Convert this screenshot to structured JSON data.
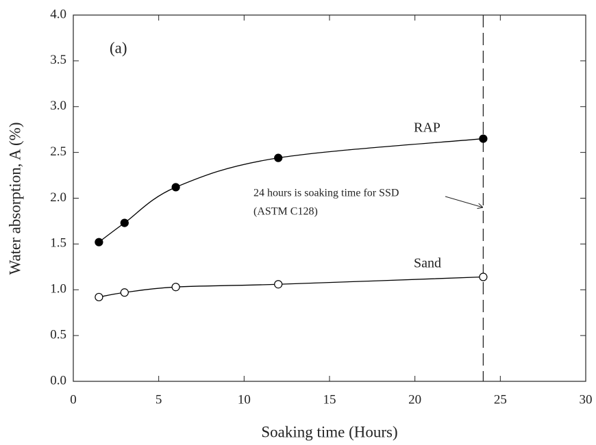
{
  "chart_data": {
    "type": "line",
    "panel_label": "(a)",
    "x_label": "Soaking time (Hours)",
    "y_label": "Water absorption, A (%)",
    "xlim": [
      0,
      30
    ],
    "xticks": [
      0,
      5,
      10,
      15,
      20,
      25,
      30
    ],
    "ylim": [
      0,
      4
    ],
    "yticks": [
      {
        "value": 0,
        "label": "0.0"
      },
      {
        "value": 0.5,
        "label": "0.5"
      },
      {
        "value": 1,
        "label": "1.0"
      },
      {
        "value": 1.5,
        "label": "1.5"
      },
      {
        "value": 2,
        "label": "2.0"
      },
      {
        "value": 2.5,
        "label": "2.5"
      },
      {
        "value": 3,
        "label": "3.0"
      },
      {
        "value": 3.5,
        "label": "3.5"
      },
      {
        "value": 4,
        "label": "4.0"
      }
    ],
    "x": [
      1.5,
      3,
      6,
      12,
      24
    ],
    "series": [
      {
        "name": "RAP",
        "color": "#000000",
        "marker": "filled",
        "values": [
          1.52,
          1.73,
          2.12,
          2.44,
          2.65
        ]
      },
      {
        "name": "Sand",
        "color": "#000000",
        "marker": "open",
        "values": [
          0.92,
          0.97,
          1.03,
          1.06,
          1.14
        ]
      }
    ],
    "vline": 24,
    "annotation": [
      "24 hours is soaking time for SSD",
      "(ASTM C128)"
    ]
  }
}
